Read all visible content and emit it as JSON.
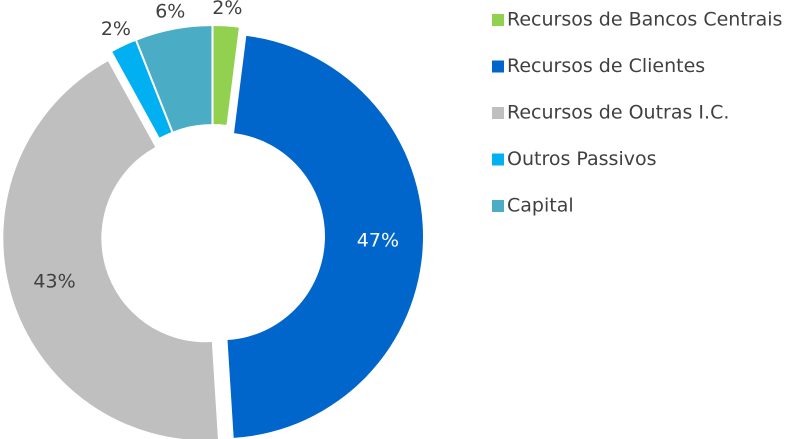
{
  "chart_data": {
    "type": "donut",
    "categories": [
      "Recursos de Bancos Centrais",
      "Recursos de Clientes",
      "Recursos de Outras I.C.",
      "Outros Passivos",
      "Capital"
    ],
    "values": [
      2,
      47,
      43,
      2,
      6
    ],
    "value_labels": [
      "2%",
      "47%",
      "43%",
      "2%",
      "6%"
    ],
    "colors": [
      "#92d050",
      "#0066cc",
      "#bfbfbf",
      "#00b0f0",
      "#4bacc6"
    ],
    "legend": "right"
  }
}
